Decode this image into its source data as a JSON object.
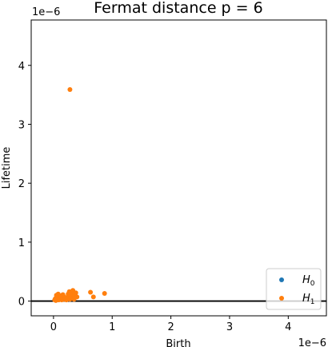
{
  "chart_data": {
    "type": "scatter",
    "title": "Fermat distance p = 6",
    "xlabel": "Birth",
    "ylabel": "Lifetime",
    "x_offset_label": "1e−6",
    "y_offset_label": "1e−6",
    "scale": 1e-06,
    "xlim": [
      -0.38,
      4.65
    ],
    "ylim": [
      -0.25,
      4.77
    ],
    "xticks": [
      0,
      1,
      2,
      3,
      4
    ],
    "yticks": [
      0,
      1,
      2,
      3,
      4
    ],
    "xtick_labels": [
      "0",
      "1",
      "2",
      "3",
      "4"
    ],
    "ytick_labels": [
      "0",
      "1",
      "2",
      "3",
      "4"
    ],
    "grid": false,
    "legend_position": "lower right",
    "zero_line": true,
    "series": [
      {
        "name": "H0",
        "label_main": "H",
        "label_sub": "0",
        "color": "#1f77b4",
        "points": []
      },
      {
        "name": "H1",
        "label_main": "H",
        "label_sub": "1",
        "color": "#ff7f0e",
        "points": [
          [
            0.28,
            3.59
          ],
          [
            0.02,
            0.02
          ],
          [
            0.03,
            0.04
          ],
          [
            0.04,
            0.01
          ],
          [
            0.05,
            0.06
          ],
          [
            0.06,
            0.03
          ],
          [
            0.07,
            0.08
          ],
          [
            0.08,
            0.12
          ],
          [
            0.09,
            0.02
          ],
          [
            0.1,
            0.05
          ],
          [
            0.11,
            0.09
          ],
          [
            0.12,
            0.03
          ],
          [
            0.13,
            0.07
          ],
          [
            0.14,
            0.02
          ],
          [
            0.15,
            0.05
          ],
          [
            0.17,
            0.08
          ],
          [
            0.18,
            0.03
          ],
          [
            0.2,
            0.06
          ],
          [
            0.22,
            0.02
          ],
          [
            0.24,
            0.05
          ],
          [
            0.26,
            0.09
          ],
          [
            0.27,
            0.16
          ],
          [
            0.28,
            0.03
          ],
          [
            0.3,
            0.07
          ],
          [
            0.31,
            0.12
          ],
          [
            0.33,
            0.18
          ],
          [
            0.34,
            0.05
          ],
          [
            0.36,
            0.1
          ],
          [
            0.38,
            0.14
          ],
          [
            0.4,
            0.07
          ],
          [
            0.63,
            0.15
          ],
          [
            0.68,
            0.07
          ],
          [
            0.87,
            0.13
          ],
          [
            0.05,
            0.1
          ],
          [
            0.16,
            0.11
          ],
          [
            0.21,
            0.04
          ],
          [
            0.25,
            0.12
          ],
          [
            0.35,
            0.03
          ]
        ]
      }
    ]
  }
}
